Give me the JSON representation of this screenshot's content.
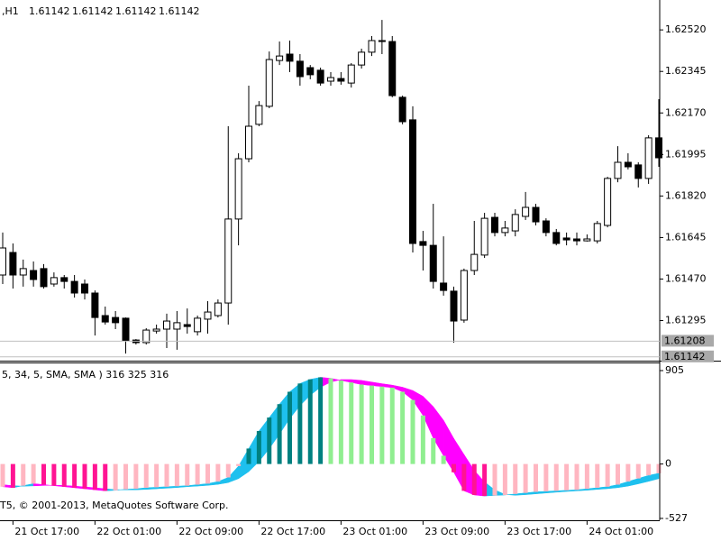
{
  "header": {
    "symbol": ",H1",
    "quote": [
      "1.61142",
      "1.61142",
      "1.61142",
      "1.61142"
    ]
  },
  "chart_data": [
    {
      "type": "candlestick",
      "categories": [
        null,
        "21 Oct 17:00",
        null,
        null,
        null,
        null,
        null,
        null,
        null,
        "22 Oct 01:00",
        null,
        null,
        null,
        null,
        null,
        null,
        null,
        "22 Oct 09:00",
        null,
        null,
        null,
        null,
        null,
        null,
        null,
        "22 Oct 17:00",
        null,
        null,
        null,
        null,
        null,
        null,
        null,
        "23 Oct 01:00",
        null,
        null,
        null,
        null,
        null,
        null,
        null,
        "23 Oct 09:00",
        null,
        null,
        null,
        null,
        null,
        null,
        null,
        "23 Oct 17:00",
        null,
        null,
        null,
        null,
        null,
        null,
        null,
        "24 Oct 01:00",
        null,
        null,
        null,
        null,
        null,
        null,
        null
      ],
      "open": [
        1.61487,
        1.61582,
        1.61487,
        1.61506,
        1.61514,
        1.61449,
        1.61476,
        1.6146,
        1.61449,
        1.61411,
        1.61316,
        1.61308,
        1.61305,
        1.61213,
        1.61202,
        1.61251,
        1.61259,
        1.61259,
        1.61278,
        1.61248,
        1.61301,
        1.61316,
        1.61369,
        1.61723,
        1.61977,
        1.62122,
        1.62198,
        1.62391,
        1.62418,
        1.62388,
        1.62361,
        1.6235,
        1.62304,
        1.62315,
        1.62296,
        1.62372,
        1.62426,
        1.62471,
        1.62471,
        1.62236,
        1.62141,
        1.61628,
        1.61612,
        1.61453,
        1.61419,
        1.61297,
        1.61506,
        1.61571,
        1.6173,
        1.61666,
        1.61673,
        1.61734,
        1.61772,
        1.61715,
        1.61666,
        1.61643,
        1.61639,
        1.61631,
        1.61631,
        1.61696,
        1.61894,
        1.61962,
        1.61951,
        1.61894,
        1.62065
      ],
      "high": [
        1.61666,
        1.6162,
        1.61552,
        1.61544,
        1.61533,
        1.61498,
        1.61487,
        1.61487,
        1.61468,
        1.61422,
        1.61354,
        1.61335,
        1.61308,
        1.61217,
        1.61263,
        1.61278,
        1.61324,
        1.61335,
        1.61346,
        1.61316,
        1.61377,
        1.61384,
        1.62114,
        1.62,
        1.62285,
        1.6222,
        1.62429,
        1.62471,
        1.62475,
        1.62418,
        1.62372,
        1.62361,
        1.62342,
        1.62342,
        1.6238,
        1.62441,
        1.62494,
        1.62562,
        1.62494,
        1.62243,
        1.62198,
        1.61673,
        1.61787,
        1.6165,
        1.61438,
        1.61514,
        1.61715,
        1.61749,
        1.61749,
        1.61715,
        1.61764,
        1.61837,
        1.61787,
        1.61726,
        1.61681,
        1.61666,
        1.61666,
        1.61658,
        1.61715,
        1.61901,
        1.6203,
        1.62,
        1.61962,
        1.62076,
        1.62228
      ],
      "low": [
        1.61449,
        1.6143,
        1.61438,
        1.61438,
        1.6143,
        1.61438,
        1.6143,
        1.61392,
        1.61384,
        1.61232,
        1.61278,
        1.61259,
        1.61156,
        1.61194,
        1.61194,
        1.6124,
        1.61179,
        1.61172,
        1.6124,
        1.61232,
        1.6124,
        1.61308,
        1.61278,
        1.61612,
        1.61962,
        1.62114,
        1.6219,
        1.62372,
        1.62342,
        1.62285,
        1.62312,
        1.62285,
        1.62285,
        1.62289,
        1.62277,
        1.62357,
        1.6241,
        1.62418,
        1.62236,
        1.62122,
        1.61582,
        1.61506,
        1.6143,
        1.614,
        1.61202,
        1.61286,
        1.61487,
        1.61559,
        1.6165,
        1.6165,
        1.6165,
        1.61719,
        1.61696,
        1.6165,
        1.61612,
        1.61612,
        1.61612,
        1.61628,
        1.6162,
        1.61688,
        1.61878,
        1.61932,
        1.61856,
        1.61871,
        1.61943
      ],
      "close": [
        1.61601,
        1.61487,
        1.61514,
        1.61468,
        1.61438,
        1.61476,
        1.6146,
        1.61411,
        1.61411,
        1.61308,
        1.61289,
        1.61286,
        1.6121,
        1.61202,
        1.61255,
        1.61259,
        1.61293,
        1.61286,
        1.6127,
        1.61305,
        1.61331,
        1.61369,
        1.61723,
        1.61977,
        1.62114,
        1.62201,
        1.62395,
        1.6241,
        1.62388,
        1.62323,
        1.62331,
        1.62296,
        1.62319,
        1.62304,
        1.62372,
        1.62426,
        1.62475,
        1.62475,
        1.62243,
        1.62133,
        1.6162,
        1.61612,
        1.6146,
        1.61422,
        1.61293,
        1.61506,
        1.61574,
        1.61726,
        1.61666,
        1.61685,
        1.61742,
        1.61772,
        1.61711,
        1.61666,
        1.6162,
        1.61635,
        1.61631,
        1.61639,
        1.61704,
        1.61894,
        1.61962,
        1.61943,
        1.61894,
        1.62065,
        1.61981
      ],
      "up_color": "#ffffff",
      "down_color": "#000000",
      "ylim": [
        1.61126,
        1.62646
      ],
      "yticks": [
        {
          "value": 1.6252,
          "label": "1.62520"
        },
        {
          "value": 1.62345,
          "label": "1.62345"
        },
        {
          "value": 1.6217,
          "label": "1.62170"
        },
        {
          "value": 1.61995,
          "label": "1.61995"
        },
        {
          "value": 1.6182,
          "label": "1.61820"
        },
        {
          "value": 1.61645,
          "label": "1.61645"
        },
        {
          "value": 1.6147,
          "label": "1.61470"
        },
        {
          "value": 1.61295,
          "label": "1.61295"
        }
      ],
      "levels": [
        {
          "value": 1.61208,
          "label": "1.61208"
        },
        {
          "value": 1.61142,
          "label": "1.61142"
        }
      ]
    },
    {
      "type": "histogram",
      "title": "5, 34, 5, SMA, SMA ) 316 325 316",
      "annotation": "T5, © 2001-2013, MetaQuotes Software Corp.",
      "values": [
        -220,
        -230,
        -210,
        -190,
        -200,
        -210,
        -220,
        -230,
        -240,
        -250,
        -260,
        -255,
        -245,
        -240,
        -230,
        -225,
        -220,
        -215,
        -210,
        -200,
        -190,
        -170,
        -130,
        -20,
        150,
        320,
        450,
        580,
        700,
        780,
        820,
        840,
        830,
        810,
        790,
        770,
        760,
        750,
        740,
        700,
        620,
        470,
        250,
        80,
        -80,
        -260,
        -300,
        -310,
        -305,
        -300,
        -290,
        -280,
        -270,
        -265,
        -260,
        -255,
        -250,
        -240,
        -230,
        -220,
        -200,
        -170,
        -140,
        -110,
        -90
      ],
      "signal": [
        -200,
        -210,
        -215,
        -212,
        -208,
        -205,
        -208,
        -214,
        -222,
        -230,
        -240,
        -248,
        -250,
        -250,
        -246,
        -240,
        -234,
        -228,
        -220,
        -214,
        -207,
        -197,
        -180,
        -142,
        -74,
        24,
        148,
        290,
        440,
        566,
        666,
        744,
        794,
        818,
        818,
        810,
        794,
        778,
        764,
        744,
        712,
        656,
        556,
        424,
        248,
        92,
        -62,
        -174,
        -251,
        -295,
        -303,
        -297,
        -289,
        -281,
        -273,
        -266,
        -260,
        -254,
        -246,
        -239,
        -229,
        -214,
        -192,
        -168,
        -142
      ],
      "colors": [
        "#008080",
        "#90ee90",
        "#ff1493",
        "#ffb6c1"
      ],
      "band_colors": [
        "#1ec0ee",
        "#ff00ff"
      ],
      "ylim": [
        -545,
        975
      ],
      "yticks": [
        905,
        0,
        -527
      ]
    }
  ]
}
